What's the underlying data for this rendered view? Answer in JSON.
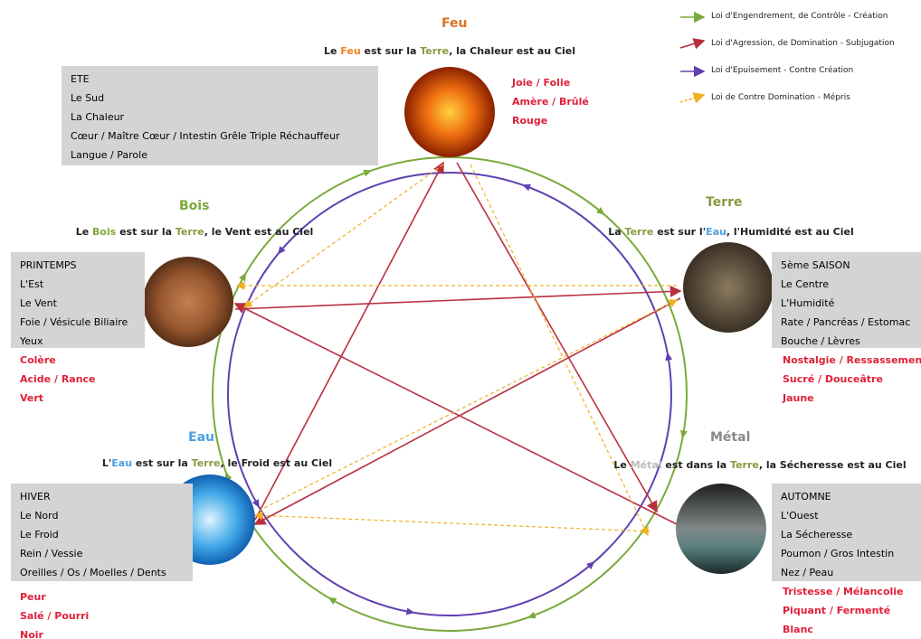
{
  "legend": [
    "Loi d'Engendrement, de Contrôle - Création",
    "Loi d'Agression, de Domination - Subjugation",
    "Loi d'Epuisement - Contre Création",
    "Loi de Contre Domination - Mépris"
  ],
  "elements": [
    {
      "name": "Feu",
      "caption": [
        "Le ",
        "Feu",
        " est sur la ",
        "Terre",
        ", la Chaleur est au Ciel"
      ],
      "box": [
        "ETE",
        "Le Sud",
        "La Chaleur",
        "Cœur / Maître Cœur / Intestin Grêle Triple Réchauffeur",
        "Langue / Parole"
      ],
      "traits": [
        "Joie / Folie",
        "Amère / Brûlé",
        "Rouge"
      ]
    },
    {
      "name": "Bois",
      "caption": [
        "Le ",
        "Bois",
        " est sur la ",
        "Terre",
        ", le Vent est au Ciel"
      ],
      "box": [
        "PRINTEMPS",
        "L'Est",
        "Le Vent",
        "Foie / Vésicule Biliaire",
        "Yeux"
      ],
      "traits": [
        "Colère",
        "Acide / Rance",
        "Vert"
      ]
    },
    {
      "name": "Terre",
      "caption": [
        "La ",
        "Terre",
        " est sur l'",
        "Eau",
        ", l'Humidité est au Ciel"
      ],
      "box": [
        "5ème SAISON",
        "Le Centre",
        "L'Humidité",
        "Rate / Pancréas / Estomac",
        "Bouche / Lèvres"
      ],
      "traits": [
        "Nostalgie / Ressassement",
        "Sucré / Douceâtre",
        "Jaune"
      ]
    },
    {
      "name": "Eau",
      "caption": [
        "L'",
        "Eau",
        " est sur la ",
        "Terre",
        ", le Froid est au Ciel"
      ],
      "box": [
        "HIVER",
        "Le Nord",
        "Le Froid",
        "Rein / Vessie",
        "Oreilles / Os / Moelles / Dents"
      ],
      "traits": [
        "Peur",
        "Salé / Pourri",
        "Noir"
      ]
    },
    {
      "name": "Métal",
      "caption": [
        "Le ",
        "Métal",
        " est dans la ",
        "Terre",
        ", la Sécheresse est au Ciel"
      ],
      "box": [
        "AUTOMNE",
        "L'Ouest",
        "La Sécheresse",
        "Poumon / Gros Intestin",
        "Nez / Peau"
      ],
      "traits": [
        "Tristesse / Mélancolie",
        "Piquant / Fermenté",
        "Blanc"
      ]
    }
  ]
}
